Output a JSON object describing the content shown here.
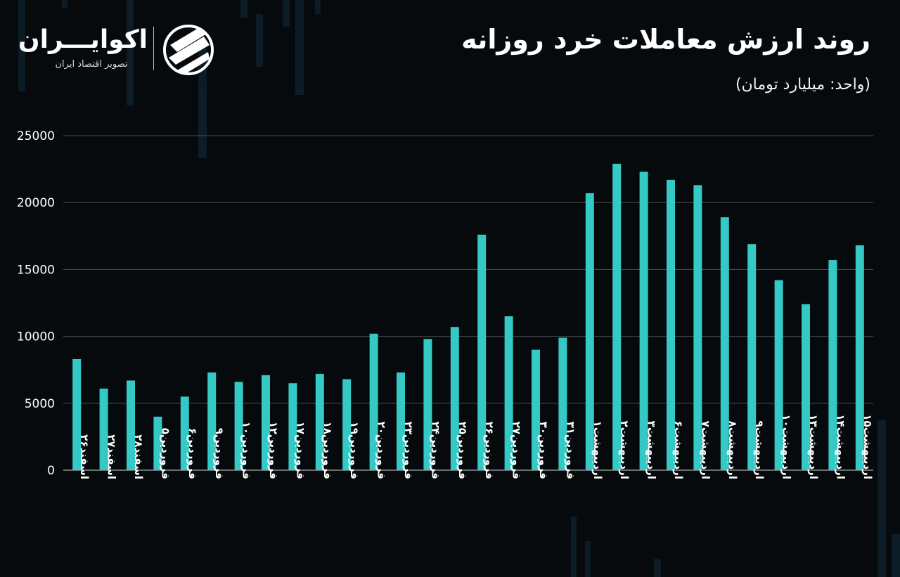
{
  "header": {
    "title": "روند ارزش معاملات خرد روزانه",
    "subtitle": "(واحد: میلیارد تومان)"
  },
  "brand": {
    "name": "اکوایـــران",
    "tagline": "تصویر اقتصاد ایران"
  },
  "colors": {
    "bar": "#34c9c5",
    "background": "#060a0d",
    "grid": "#4a4f52"
  },
  "chart_data": {
    "type": "bar",
    "title": "روند ارزش معاملات خرد روزانه",
    "ylabel": "(واحد: میلیارد تومان)",
    "xlabel": "",
    "ylim": [
      0,
      25000
    ],
    "yticks": [
      "25000",
      "20000",
      "15000",
      "10000",
      "5000",
      "0"
    ],
    "ytick_values": [
      25000,
      20000,
      15000,
      10000,
      5000,
      0
    ],
    "grid": true,
    "categories": [
      "اسفند۲۶",
      "اسفند۲۷",
      "اسفند۲۸",
      "فروردین۵",
      "فروردین۶",
      "فروردین۹",
      "فروردین۱۰",
      "فروردین۱۲",
      "فروردین۱۷",
      "فروردین۱۸",
      "فروردین۱۹",
      "فروردین۲۰",
      "فروردین۲۳",
      "فروردین۲۴",
      "فروردین۲۵",
      "فروردین۲۶",
      "فروردین۲۷",
      "فروردین۳۰",
      "فروردین۳۱",
      "اردیبهشت۱",
      "اردیبهشت۲",
      "اردیبهشت۳",
      "اردیبهشت۶",
      "اردیبهشت۷",
      "اردیبهشت۸",
      "اردیبهشت۹",
      "اردیبهشت۱۰",
      "اردیبهشت۱۳",
      "اردیبهشت۱۴",
      "اردیبهشت۱۵"
    ],
    "values": [
      8300,
      6100,
      6700,
      4000,
      5500,
      7300,
      6600,
      7100,
      6500,
      7200,
      6800,
      10200,
      7300,
      9800,
      10700,
      17600,
      11500,
      9000,
      9900,
      20700,
      22900,
      22300,
      21700,
      21300,
      18900,
      16900,
      14200,
      12400,
      15700,
      16800
    ]
  }
}
